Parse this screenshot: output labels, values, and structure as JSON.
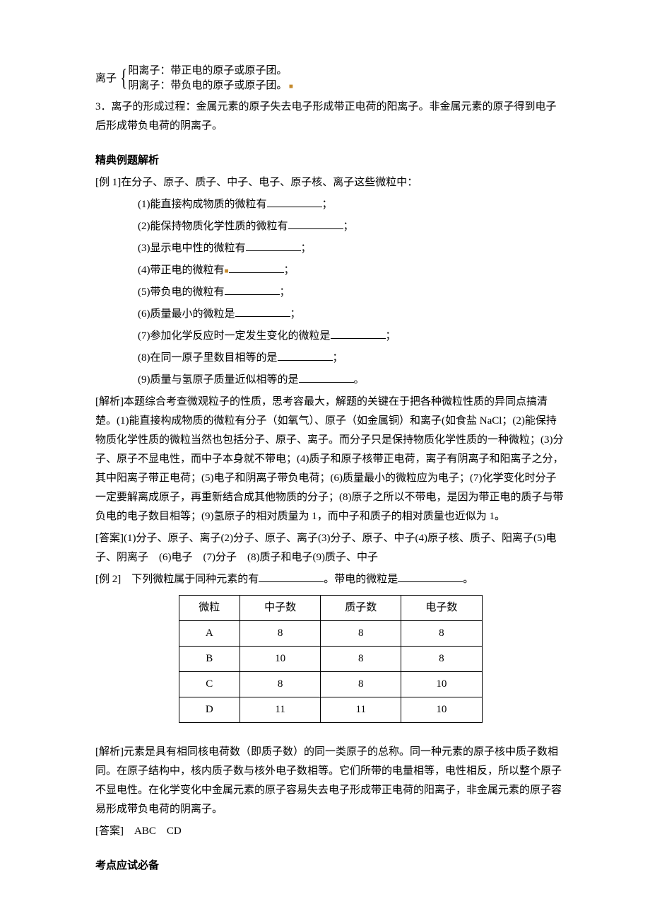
{
  "brace": {
    "label": "离子",
    "item1": "阳离子：带正电的原子或原子团。",
    "item2": "阴离子：带负电的原子或原子团。"
  },
  "para3": "3．离子的形成过程：金属元素的原子失去电子形成带正电荷的阳离子。非金属元素的原子得到电子后形成带负电荷的阴离子。",
  "section1_title": "精典例题解析",
  "ex1_head": "[例 1]在分子、原子、质子、中子、电子、原子核、离子这些微粒中：",
  "ex1_q1a": "(1)能直接构成物质的微粒有",
  "ex1_q1b": "；",
  "ex1_q2a": "(2)能保持物质化学性质的微粒有",
  "ex1_q2b": "；",
  "ex1_q3a": "(3)显示电中性的微粒有",
  "ex1_q3b": "；",
  "ex1_q4a": "(4)带正电的微粒有",
  "ex1_q4b": "；",
  "ex1_q5a": "(5)带负电的微粒有",
  "ex1_q5b": "；",
  "ex1_q6a": "(6)质量最小的微粒是",
  "ex1_q6b": "；",
  "ex1_q7a": "(7)参加化学反应时一定发生变化的微粒是",
  "ex1_q7b": "；",
  "ex1_q8a": "(8)在同一原子里数目相等的是",
  "ex1_q8b": "；",
  "ex1_q9a": "(9)质量与氢原子质量近似相等的是",
  "ex1_q9b": "。",
  "ex1_analysis": "[解析]本题综合考查微观粒子的性质，思考容最大，解题的关键在于把各种微粒性质的异同点搞清楚。(1)能直接构成物质的微粒有分子（如氧气）、原子（如金属铜）和离子(如食盐 NaCl；(2)能保持物质化学性质的微粒当然也包括分子、原子、离子。而分子只是保持物质化学性质的一种微粒；(3)分子、原子不显电性，而中子本身就不带电；(4)质子和原子核带正电荷，离子有阴离子和阳离子之分，其中阳离子带正电荷；(5)电子和阴离子带负电荷；(6)质量最小的微粒应为电子；(7)化学变化时分子一定要解离成原子，再重新结合成其他物质的分子；(8)原子之所以不带电，是因为带正电的质子与带负电的电子数目相等；(9)氢原子的相对质量为 1，而中子和质子的相对质量也近似为 1。",
  "ex1_answer": "[答案](1)分子、原子、离子(2)分子、原子、离子(3)分子、原子、中子(4)原子核、质子、阳离子(5)电子、阴离子　(6)电子　(7)分子　(8)质子和电子(9)质子、中子",
  "ex2_head_a": " [例 2]　下列微粒属于同种元素的有",
  "ex2_head_b": "。带电的微粒是",
  "ex2_head_c": "。",
  "table": {
    "headers": [
      "微粒",
      "中子数",
      "质子数",
      "电子数"
    ],
    "rows": [
      [
        "A",
        "8",
        "8",
        "8"
      ],
      [
        "B",
        "10",
        "8",
        "8"
      ],
      [
        "C",
        "8",
        "8",
        "10"
      ],
      [
        "D",
        "11",
        "11",
        "10"
      ]
    ],
    "col_widths": [
      "25%",
      "25%",
      "25%",
      "25%"
    ],
    "border_color": "#000000",
    "background_color": "#ffffff",
    "font_size": 15
  },
  "ex2_analysis": "[解析]元素是具有相同核电荷数（即质子数）的同一类原子的总称。同一种元素的原子核中质子数相同。在原子结构中，核内质子数与核外电子数相等。它们所带的电量相等，电性相反，所以整个原子不显电性。在化学变化中金属元素的原子容易失去电子形成带正电荷的阳离子，非金属元素的原子容易形成带负电荷的阴离子。",
  "ex2_answer": "[答案]　ABC　CD",
  "section2_title": "考点应试必备"
}
